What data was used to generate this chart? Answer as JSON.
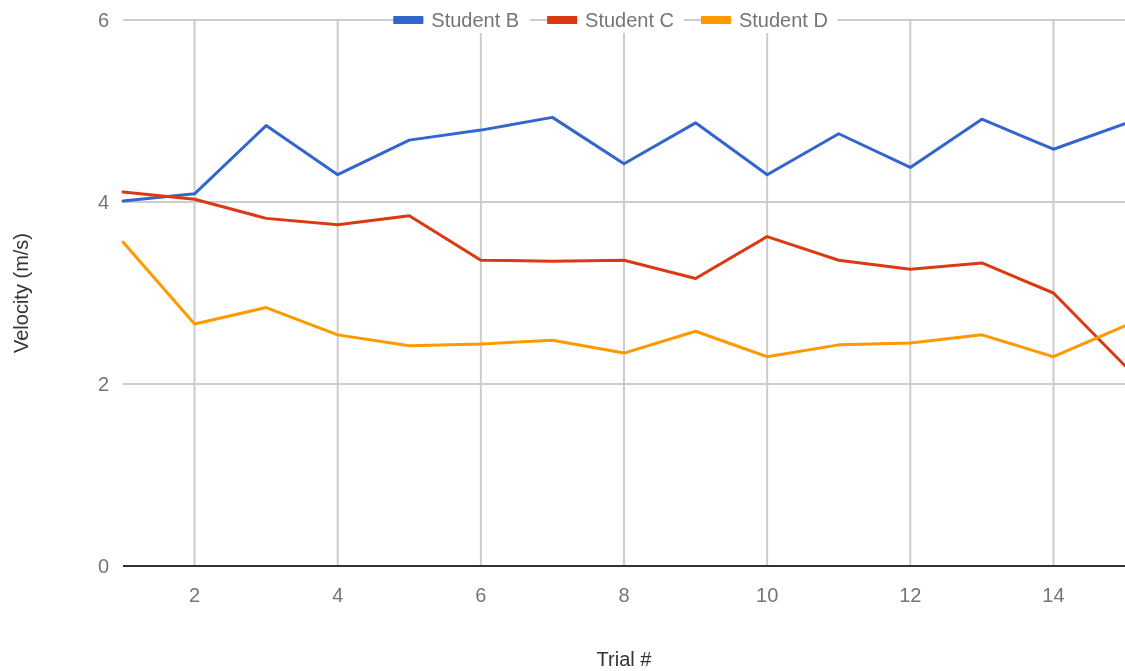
{
  "chart_data": {
    "type": "line",
    "xlabel": "Trial #",
    "ylabel": "Velocity (m/s)",
    "x": [
      1,
      2,
      3,
      4,
      5,
      6,
      7,
      8,
      9,
      10,
      11,
      12,
      13,
      14,
      15
    ],
    "series": [
      {
        "name": "Student B",
        "color": "#3366cc",
        "values": [
          4.01,
          4.09,
          4.84,
          4.3,
          4.68,
          4.79,
          4.93,
          4.42,
          4.87,
          4.3,
          4.75,
          4.38,
          4.91,
          4.58,
          4.86
        ]
      },
      {
        "name": "Student C",
        "color": "#dc3912",
        "values": [
          4.11,
          4.03,
          3.82,
          3.75,
          3.85,
          3.36,
          3.35,
          3.36,
          3.16,
          3.62,
          3.36,
          3.26,
          3.33,
          3.0,
          2.2
        ]
      },
      {
        "name": "Student D",
        "color": "#ff9900",
        "values": [
          3.56,
          2.66,
          2.84,
          2.54,
          2.42,
          2.44,
          2.48,
          2.34,
          2.58,
          2.3,
          2.43,
          2.45,
          2.54,
          2.3,
          2.64
        ]
      }
    ],
    "xlim": [
      1,
      15
    ],
    "xticks": [
      2,
      4,
      6,
      8,
      10,
      12,
      14
    ],
    "ylim": [
      0,
      6
    ],
    "yticks": [
      0,
      2,
      4,
      6
    ],
    "grid": true,
    "legend": "top",
    "marker": "none",
    "line_style": "solid"
  }
}
